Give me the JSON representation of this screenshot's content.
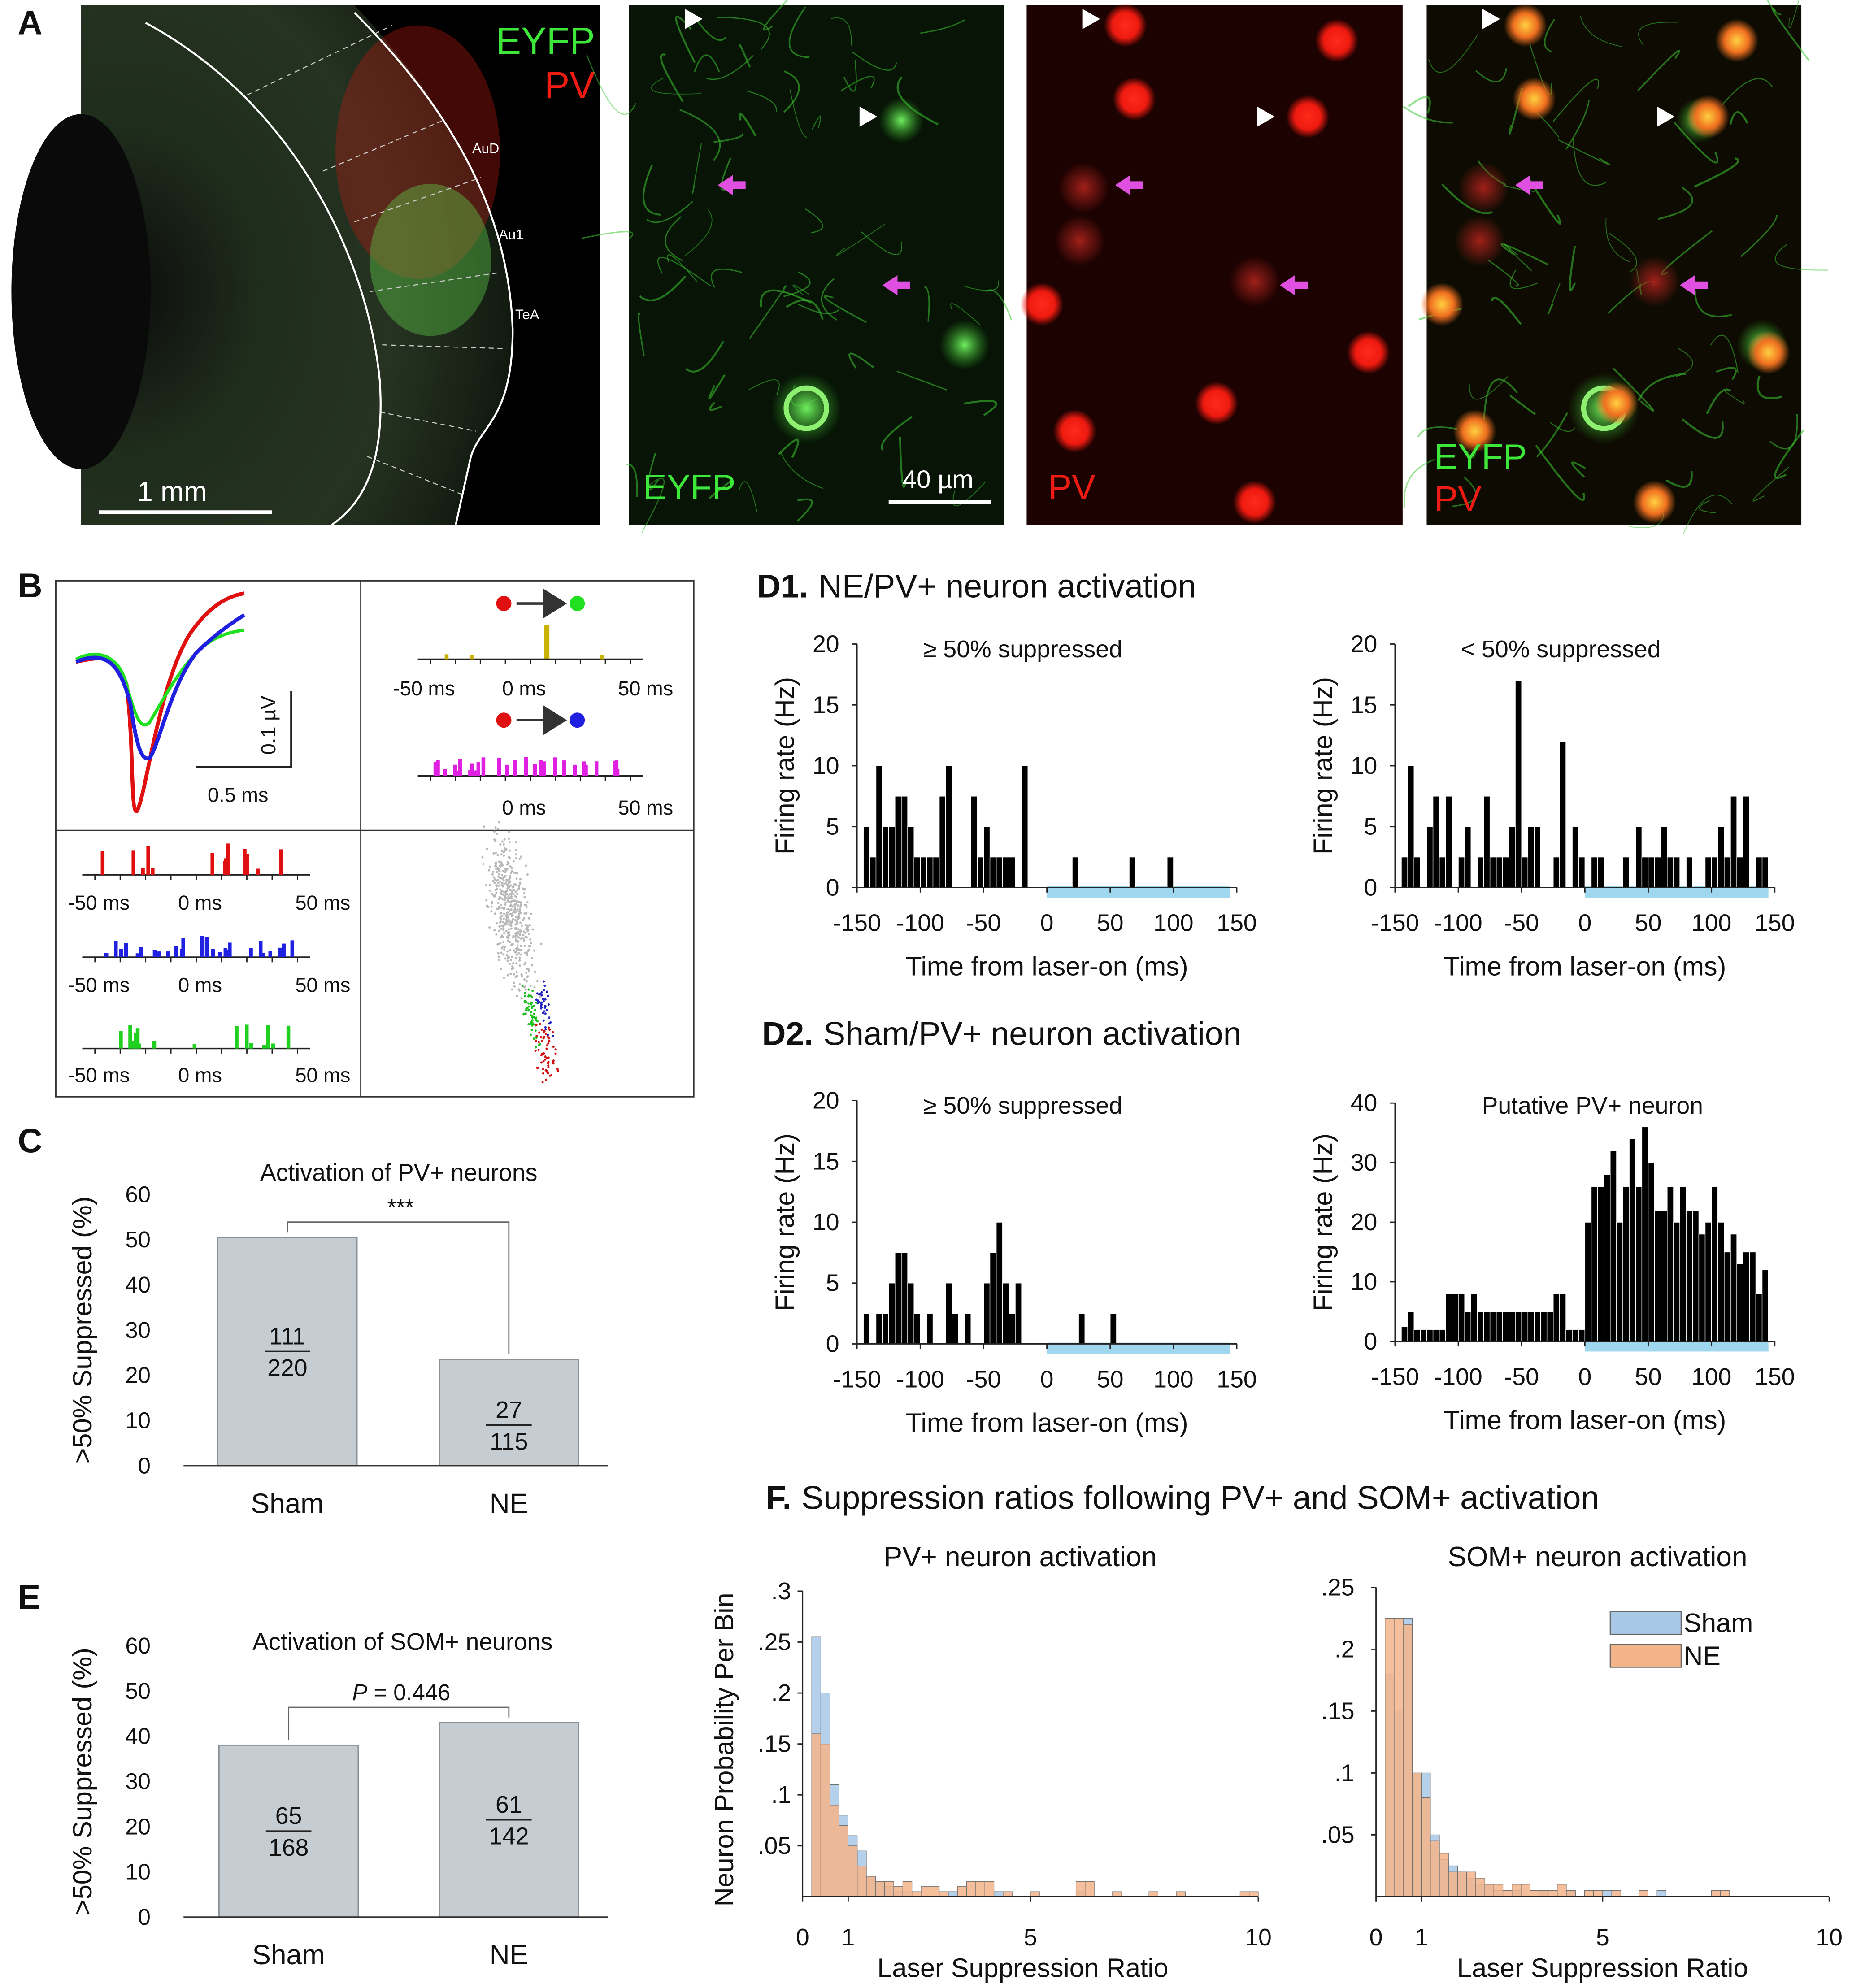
{
  "panel_labels": {
    "A": "A",
    "B": "B",
    "C": "C",
    "E": "E"
  },
  "panel_a": {
    "legend": [
      "EYFP",
      "PV"
    ],
    "regions": [
      "AuD",
      "Au1",
      "TeA"
    ],
    "scale_slice": "1 mm",
    "scale_cells": "40 µm"
  },
  "panel_b": {
    "scale_y": "0.1 µV",
    "scale_x": "0.5 ms",
    "time_ticks": [
      "-50 ms",
      "0 ms",
      "50 ms"
    ]
  },
  "sections": {
    "D1": {
      "label": "D1.",
      "title": "NE/PV+ neuron activation"
    },
    "D2": {
      "label": "D2.",
      "title": "Sham/PV+ neuron activation"
    },
    "F": {
      "label": "F.",
      "title": "Suppression ratios following PV+ and SOM+ activation"
    }
  },
  "chart_data": [
    {
      "type": "bar",
      "title": "Activation of PV+ neurons",
      "y_label": ">50% Suppressed (%)",
      "categories": [
        "Sham",
        "NE"
      ],
      "values": [
        50.5,
        23.5
      ],
      "color": "#c5cdd3",
      "fractions": [
        {
          "numerator": 111,
          "denominator": 220
        },
        {
          "numerator": 27,
          "denominator": 115
        }
      ],
      "significance": "***",
      "ylim": [
        0,
        60
      ],
      "yticks": [
        0,
        10,
        20,
        30,
        40,
        50,
        60
      ]
    },
    {
      "type": "bar",
      "title": "Activation of SOM+ neurons",
      "y_label": ">50% Suppressed (%)",
      "categories": [
        "Sham",
        "NE"
      ],
      "values": [
        38,
        43
      ],
      "color": "#c5cdd3",
      "fractions": [
        {
          "numerator": 65,
          "denominator": 168
        },
        {
          "numerator": 61,
          "denominator": 142
        }
      ],
      "significance_symbol": "P",
      "significance": "= 0.446",
      "ylim": [
        0,
        60
      ],
      "yticks": [
        0,
        10,
        20,
        30,
        40,
        50,
        60
      ]
    },
    {
      "type": "histogram",
      "subtitle": "≥ 50% suppressed",
      "x_label": "Time from laser-on (ms)",
      "y_label": "Firing rate (Hz)",
      "bins": [
        -145,
        -140,
        -135,
        -130,
        -125,
        -120,
        -115,
        -110,
        -105,
        -100,
        -95,
        -90,
        -85,
        -80,
        -75,
        -70,
        -65,
        -60,
        -55,
        -50,
        -45,
        -40,
        -35,
        -30,
        -25,
        -20,
        -15,
        -10,
        -5,
        0,
        5,
        10,
        15,
        20,
        25,
        30,
        35,
        40,
        45,
        50,
        55,
        60,
        65,
        70,
        75,
        80,
        85,
        90,
        95,
        100,
        105,
        110,
        115,
        120,
        125,
        130,
        135,
        140,
        145
      ],
      "values": [
        5,
        2.5,
        10,
        5,
        5,
        7.5,
        7.5,
        5,
        2.5,
        2.5,
        2.5,
        2.5,
        7.5,
        10,
        0,
        0,
        0,
        7.5,
        2.5,
        5,
        2.5,
        2.5,
        2.5,
        2.5,
        0,
        10,
        0,
        0,
        0,
        0,
        0,
        0,
        0,
        2.5,
        0,
        0,
        0,
        0,
        0,
        0,
        0,
        0,
        2.5,
        0,
        0,
        0,
        0,
        0,
        2.5,
        0,
        0,
        0,
        0,
        0,
        0,
        0,
        0,
        0
      ],
      "color": "#000000",
      "laser_on": [
        0,
        145
      ],
      "laser_color": "#9fd8ee",
      "xlim": [
        -150,
        150
      ],
      "xticks": [
        -150,
        -100,
        -50,
        0,
        50,
        100,
        150
      ],
      "ylim": [
        0,
        20
      ],
      "yticks": [
        0,
        5,
        10,
        15,
        20
      ]
    },
    {
      "type": "histogram",
      "subtitle": "< 50% suppressed",
      "x_label": "Time from laser-on (ms)",
      "y_label": "Firing rate (Hz)",
      "bins": [
        -145,
        -140,
        -135,
        -130,
        -125,
        -120,
        -115,
        -110,
        -105,
        -100,
        -95,
        -90,
        -85,
        -80,
        -75,
        -70,
        -65,
        -60,
        -55,
        -50,
        -45,
        -40,
        -35,
        -30,
        -25,
        -20,
        -15,
        -10,
        -5,
        0,
        5,
        10,
        15,
        20,
        25,
        30,
        35,
        40,
        45,
        50,
        55,
        60,
        65,
        70,
        75,
        80,
        85,
        90,
        95,
        100,
        105,
        110,
        115,
        120,
        125,
        130,
        135,
        140,
        145
      ],
      "values": [
        2.5,
        10,
        2.5,
        0,
        5,
        7.5,
        2.5,
        7.5,
        0,
        2.5,
        5,
        0,
        2.5,
        7.5,
        2.5,
        2.5,
        2.5,
        5,
        17,
        2.5,
        5,
        5,
        0,
        0,
        2.5,
        12,
        0,
        5,
        2.5,
        0,
        2.5,
        2.5,
        0,
        0,
        0,
        2.5,
        0,
        5,
        2.5,
        2.5,
        2.5,
        5,
        2.5,
        2.5,
        0,
        2.5,
        0,
        0,
        2.5,
        2.5,
        5,
        2.5,
        7.5,
        2.5,
        7.5,
        0,
        2.5,
        2.5
      ],
      "color": "#000000",
      "laser_on": [
        0,
        145
      ],
      "laser_color": "#9fd8ee",
      "xlim": [
        -150,
        150
      ],
      "xticks": [
        -150,
        -100,
        -50,
        0,
        50,
        100,
        150
      ],
      "ylim": [
        0,
        20
      ],
      "yticks": [
        0,
        5,
        10,
        15,
        20
      ]
    },
    {
      "type": "histogram",
      "subtitle": "≥ 50% suppressed",
      "x_label": "Time from laser-on (ms)",
      "y_label": "Firing rate (Hz)",
      "bins": [
        -145,
        -140,
        -135,
        -130,
        -125,
        -120,
        -115,
        -110,
        -105,
        -100,
        -95,
        -90,
        -85,
        -80,
        -75,
        -70,
        -65,
        -60,
        -55,
        -50,
        -45,
        -40,
        -35,
        -30,
        -25,
        -20,
        -15,
        -10,
        -5,
        0,
        5,
        10,
        15,
        20,
        25,
        30,
        35,
        40,
        45,
        50,
        55,
        60,
        65,
        70,
        75,
        80,
        85,
        90,
        95,
        100,
        105,
        110,
        115,
        120,
        125,
        130,
        135,
        140,
        145
      ],
      "values": [
        2.5,
        0,
        2.5,
        2.5,
        5,
        7.5,
        7.5,
        5,
        2.5,
        0,
        2.5,
        0,
        0,
        5,
        2.5,
        0,
        2.5,
        0,
        0,
        5,
        7.5,
        10,
        5,
        2.5,
        5,
        0,
        0,
        0,
        0,
        0,
        0,
        0,
        0,
        0,
        2.5,
        0,
        0,
        0,
        0,
        2.5,
        0,
        0,
        0,
        0,
        0,
        0,
        0,
        0,
        0,
        0,
        0,
        0,
        0,
        0,
        0,
        0,
        0,
        0
      ],
      "color": "#000000",
      "laser_on": [
        0,
        145
      ],
      "laser_color": "#9fd8ee",
      "xlim": [
        -150,
        150
      ],
      "xticks": [
        -150,
        -100,
        -50,
        0,
        50,
        100,
        150
      ],
      "ylim": [
        0,
        20
      ],
      "yticks": [
        0,
        5,
        10,
        15,
        20
      ]
    },
    {
      "type": "histogram",
      "subtitle": "Putative PV+ neuron",
      "x_label": "Time from laser-on (ms)",
      "y_label": "Firing rate (Hz)",
      "bins": [
        -145,
        -140,
        -135,
        -130,
        -125,
        -120,
        -115,
        -110,
        -105,
        -100,
        -95,
        -90,
        -85,
        -80,
        -75,
        -70,
        -65,
        -60,
        -55,
        -50,
        -45,
        -40,
        -35,
        -30,
        -25,
        -20,
        -15,
        -10,
        -5,
        0,
        5,
        10,
        15,
        20,
        25,
        30,
        35,
        40,
        45,
        50,
        55,
        60,
        65,
        70,
        75,
        80,
        85,
        90,
        95,
        100,
        105,
        110,
        115,
        120,
        125,
        130,
        135,
        140,
        145
      ],
      "values": [
        2.5,
        5,
        2,
        2,
        2,
        2,
        2,
        8,
        8,
        8,
        5,
        8,
        5,
        5,
        5,
        5,
        5,
        5,
        5,
        5,
        5,
        5,
        5,
        5,
        8,
        8,
        2,
        2,
        2,
        20,
        26,
        26,
        28,
        32,
        20,
        26,
        34,
        26,
        36,
        30,
        22,
        22,
        26,
        20,
        26,
        22,
        22,
        18,
        20,
        26,
        20,
        15,
        18,
        13,
        15,
        15,
        8,
        12
      ],
      "color": "#000000",
      "laser_on": [
        0,
        145
      ],
      "laser_color": "#9fd8ee",
      "xlim": [
        -150,
        150
      ],
      "xticks": [
        -150,
        -100,
        -50,
        0,
        50,
        100,
        150
      ],
      "ylim": [
        0,
        40
      ],
      "yticks": [
        0,
        10,
        20,
        30,
        40
      ]
    },
    {
      "type": "histogram",
      "title": "PV+ neuron activation",
      "x_label": "Laser Suppression Ratio",
      "y_label": "Neuron Probability Per Bin",
      "bins": [
        0,
        0.2,
        0.4,
        0.6,
        0.8,
        1,
        1.2,
        1.4,
        1.6,
        1.8,
        2,
        2.2,
        2.4,
        2.6,
        2.8,
        3,
        3.2,
        3.4,
        3.6,
        3.8,
        4,
        4.2,
        4.4,
        4.6,
        4.8,
        5,
        5.2,
        5.4,
        5.6,
        5.8,
        6,
        6.2,
        6.4,
        6.6,
        6.8,
        7,
        7.2,
        7.4,
        7.6,
        7.8,
        8,
        8.2,
        8.4,
        8.6,
        8.8,
        9,
        9.2,
        9.4,
        9.6,
        9.8,
        10
      ],
      "series": [
        {
          "color": "#a8c8e8",
          "values": [
            0,
            0.255,
            0.2,
            0.11,
            0.08,
            0.06,
            0.045,
            0.02,
            0.015,
            0.01,
            0.005,
            0.005,
            0,
            0,
            0,
            0,
            0.005,
            0,
            0,
            0,
            0,
            0.005,
            0,
            0,
            0,
            0,
            0,
            0,
            0,
            0,
            0.005,
            0,
            0,
            0,
            0,
            0,
            0,
            0,
            0,
            0,
            0,
            0,
            0,
            0,
            0,
            0,
            0,
            0,
            0,
            0
          ]
        },
        {
          "color": "#f4b48a",
          "values": [
            0,
            0.16,
            0.15,
            0.09,
            0.07,
            0.05,
            0.03,
            0.02,
            0.015,
            0.015,
            0.01,
            0.015,
            0.005,
            0.01,
            0.01,
            0.005,
            0,
            0.01,
            0.015,
            0.015,
            0.015,
            0,
            0.005,
            0,
            0,
            0.005,
            0,
            0,
            0,
            0,
            0.015,
            0.015,
            0,
            0,
            0.005,
            0,
            0,
            0,
            0.005,
            0,
            0,
            0.005,
            0,
            0,
            0,
            0,
            0,
            0,
            0.005,
            0.005
          ]
        }
      ],
      "xlim": [
        0,
        10
      ],
      "xticks": [
        0,
        1,
        5,
        10
      ],
      "ylim": [
        0,
        0.3
      ],
      "yticks": [
        {
          "value": 0.05,
          "label": ".05"
        },
        {
          "value": 0.1,
          "label": ".1"
        },
        {
          "value": 0.15,
          "label": ".15"
        },
        {
          "value": 0.2,
          "label": ".2"
        },
        {
          "value": 0.25,
          "label": ".25"
        },
        {
          "value": 0.3,
          "label": ".3"
        }
      ]
    },
    {
      "type": "histogram",
      "title": "SOM+ neuron activation",
      "x_label": "Laser Suppression Ratio",
      "legend": "upper right",
      "bins": [
        0,
        0.2,
        0.4,
        0.6,
        0.8,
        1,
        1.2,
        1.4,
        1.6,
        1.8,
        2,
        2.2,
        2.4,
        2.6,
        2.8,
        3,
        3.2,
        3.4,
        3.6,
        3.8,
        4,
        4.2,
        4.4,
        4.6,
        4.8,
        5,
        5.2,
        5.4,
        5.6,
        5.8,
        6,
        6.2,
        6.4,
        6.6,
        6.8,
        7,
        7.2,
        7.4,
        7.6,
        7.8,
        8,
        8.2,
        8.4,
        8.6,
        8.8,
        9,
        9.2,
        9.4,
        9.6,
        9.8,
        10
      ],
      "series": [
        {
          "name": "Sham",
          "color": "#a8c8e8",
          "values": [
            0,
            0.18,
            0.15,
            0.225,
            0.1,
            0.1,
            0.05,
            0.03,
            0.025,
            0.02,
            0.015,
            0.01,
            0.01,
            0.005,
            0,
            0.005,
            0,
            0,
            0.005,
            0,
            0,
            0.005,
            0,
            0,
            0,
            0.005,
            0,
            0,
            0,
            0,
            0,
            0.005,
            0,
            0,
            0,
            0,
            0,
            0,
            0,
            0,
            0,
            0,
            0,
            0,
            0,
            0,
            0,
            0,
            0,
            0
          ]
        },
        {
          "name": "NE",
          "color": "#f4b48a",
          "values": [
            0,
            0.225,
            0.225,
            0.22,
            0.1,
            0.08,
            0.045,
            0.035,
            0.02,
            0.02,
            0.02,
            0.015,
            0.01,
            0.01,
            0.005,
            0.01,
            0.01,
            0.005,
            0.005,
            0.005,
            0.01,
            0.005,
            0,
            0.005,
            0.005,
            0,
            0.005,
            0,
            0,
            0.005,
            0,
            0,
            0,
            0,
            0,
            0,
            0,
            0.005,
            0.005,
            0,
            0,
            0,
            0,
            0,
            0,
            0,
            0,
            0,
            0,
            0
          ]
        }
      ],
      "xlim": [
        0,
        10
      ],
      "xticks": [
        0,
        1,
        5,
        10
      ],
      "ylim": [
        0,
        0.25
      ],
      "yticks": [
        {
          "value": 0.05,
          "label": ".05"
        },
        {
          "value": 0.1,
          "label": ".1"
        },
        {
          "value": 0.15,
          "label": ".15"
        },
        {
          "value": 0.2,
          "label": ".2"
        },
        {
          "value": 0.25,
          "label": ".25"
        }
      ]
    }
  ]
}
